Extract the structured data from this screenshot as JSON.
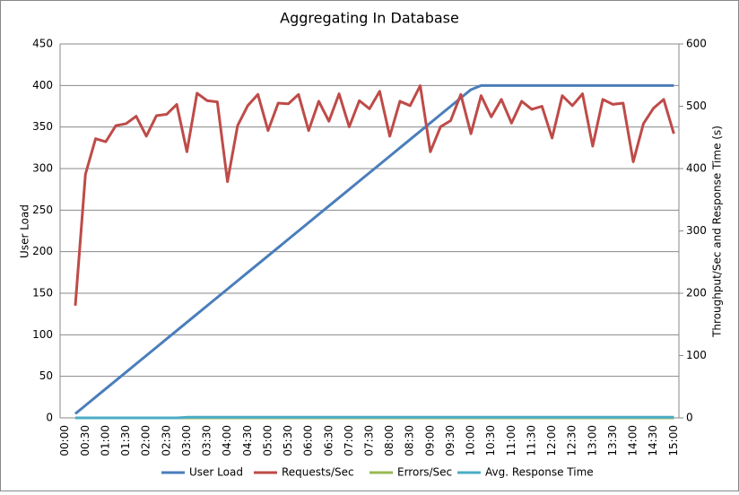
{
  "chart_data": {
    "type": "line",
    "title": "Aggregating In Database",
    "y_label": "User Load",
    "y2_label": "Throughput/Sec and Response Time (s)",
    "categories": [
      "00:00",
      null,
      "00:30",
      null,
      "01:00",
      null,
      "01:30",
      null,
      "02:00",
      null,
      "02:30",
      null,
      "03:00",
      null,
      "03:30",
      null,
      "04:00",
      null,
      "04:30",
      null,
      "05:00",
      null,
      "05:30",
      null,
      "06:00",
      null,
      "06:30",
      null,
      "07:00",
      null,
      "07:30",
      null,
      "08:00",
      null,
      "08:30",
      null,
      "09:00",
      null,
      "09:30",
      null,
      "10:00",
      null,
      "10:30",
      null,
      "11:00",
      null,
      "11:30",
      null,
      "12:00",
      null,
      "12:30",
      null,
      "13:00",
      null,
      "13:30",
      null,
      "14:00",
      null,
      "14:30",
      null,
      "15:00"
    ],
    "series": [
      {
        "name": "User Load",
        "color": "#4a7ebb",
        "axis": "y",
        "values": [
          null,
          5,
          15,
          25,
          35,
          45,
          55,
          65,
          75,
          85,
          95,
          105,
          115,
          125,
          135,
          145,
          155,
          165,
          175,
          185,
          195,
          205,
          215,
          225,
          235,
          245,
          255,
          265,
          275,
          285,
          295,
          305,
          315,
          325,
          335,
          345,
          355,
          365,
          375,
          385,
          395,
          400,
          400,
          400,
          400,
          400,
          400,
          400,
          400,
          400,
          400,
          400,
          400,
          400,
          400,
          400,
          400,
          400,
          400,
          400,
          400
        ]
      },
      {
        "name": "Requests/Sec",
        "color": "#be4b48",
        "axis": "y2",
        "values": [
          null,
          180,
          391,
          448,
          443,
          469,
          472,
          484,
          452,
          485,
          487,
          503,
          427,
          521,
          509,
          507,
          379,
          469,
          501,
          519,
          461,
          505,
          504,
          519,
          461,
          508,
          476,
          520,
          467,
          509,
          496,
          524,
          452,
          508,
          501,
          533,
          427,
          467,
          477,
          519,
          456,
          517,
          483,
          511,
          473,
          508,
          495,
          500,
          449,
          517,
          501,
          520,
          436,
          511,
          503,
          505,
          411,
          472,
          497,
          511,
          456
        ]
      },
      {
        "name": "Errors/Sec",
        "color": "#98b954",
        "axis": "y2",
        "values": [
          null,
          0,
          0,
          0,
          0,
          0,
          0,
          0,
          0,
          0,
          0,
          0,
          0,
          0,
          0,
          0,
          0,
          0,
          0,
          0,
          0,
          0,
          0,
          0,
          0,
          0,
          0,
          0,
          0,
          0,
          0,
          0,
          0,
          0,
          0,
          0,
          0,
          0,
          0,
          0,
          0,
          0,
          0,
          0,
          0,
          0,
          0,
          0,
          0,
          0,
          0,
          0,
          0,
          0,
          0,
          0,
          0,
          0,
          0,
          0,
          0
        ]
      },
      {
        "name": "Avg. Response Time",
        "color": "#4bacc6",
        "axis": "y2",
        "values": [
          null,
          0,
          0,
          0,
          0,
          0,
          0,
          0,
          0,
          0,
          0,
          0,
          1,
          1,
          1,
          1,
          1,
          1,
          1,
          1,
          1,
          1,
          1,
          1,
          1,
          1,
          1,
          1,
          1,
          1,
          1,
          1,
          1,
          1,
          1,
          1,
          1,
          1,
          1,
          1,
          1,
          1,
          1,
          1,
          1,
          1,
          1,
          1,
          1,
          1,
          1,
          1,
          1,
          1,
          1,
          1,
          1,
          1,
          1,
          1,
          1
        ]
      }
    ],
    "ylim": [
      0,
      450
    ],
    "yticks": [
      0,
      50,
      100,
      150,
      200,
      250,
      300,
      350,
      400,
      450
    ],
    "y2lim": [
      0,
      600
    ],
    "y2ticks": [
      0,
      100,
      200,
      300,
      400,
      500,
      600
    ],
    "grid": true,
    "legend": "bottom"
  }
}
